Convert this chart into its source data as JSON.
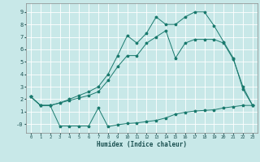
{
  "xlabel": "Humidex (Indice chaleur)",
  "bg_color": "#c8e8e8",
  "grid_color": "#ffffff",
  "line_color": "#1a7a6e",
  "xlim": [
    -0.5,
    23.5
  ],
  "ylim": [
    -0.7,
    9.7
  ],
  "xticks": [
    0,
    1,
    2,
    3,
    4,
    5,
    6,
    7,
    8,
    9,
    10,
    11,
    12,
    13,
    14,
    15,
    16,
    17,
    18,
    19,
    20,
    21,
    22,
    23
  ],
  "yticks": [
    0,
    1,
    2,
    3,
    4,
    5,
    6,
    7,
    8,
    9
  ],
  "ytick_labels": [
    "-0",
    "1",
    "2",
    "3",
    "4",
    "5",
    "6",
    "7",
    "8",
    "9"
  ],
  "line1_x": [
    0,
    1,
    2,
    3,
    4,
    5,
    6,
    7,
    8,
    9,
    10,
    11,
    12,
    13,
    14,
    15,
    16,
    17,
    18,
    19,
    20,
    21,
    22,
    23
  ],
  "line1_y": [
    2.2,
    1.5,
    1.5,
    -0.15,
    -0.15,
    -0.15,
    -0.15,
    1.3,
    -0.2,
    -0.05,
    0.05,
    0.1,
    0.2,
    0.3,
    0.5,
    0.8,
    0.95,
    1.05,
    1.1,
    1.15,
    1.3,
    1.4,
    1.5,
    1.5
  ],
  "line2_x": [
    0,
    1,
    2,
    3,
    4,
    5,
    6,
    7,
    8,
    9,
    10,
    11,
    12,
    13,
    14,
    15,
    16,
    17,
    18,
    19,
    20,
    21,
    22,
    23
  ],
  "line2_y": [
    2.2,
    1.5,
    1.5,
    1.7,
    1.9,
    2.1,
    2.3,
    2.6,
    3.5,
    4.6,
    5.5,
    5.5,
    6.5,
    7.0,
    7.5,
    5.3,
    6.5,
    6.8,
    6.8,
    6.8,
    6.5,
    5.2,
    3.0,
    1.5
  ],
  "line3_x": [
    0,
    1,
    2,
    3,
    4,
    5,
    6,
    7,
    8,
    9,
    10,
    11,
    12,
    13,
    14,
    15,
    16,
    17,
    18,
    19,
    20,
    21,
    22,
    23
  ],
  "line3_y": [
    2.2,
    1.5,
    1.5,
    1.7,
    2.0,
    2.3,
    2.6,
    3.0,
    4.0,
    5.5,
    7.1,
    6.5,
    7.3,
    8.6,
    8.0,
    8.0,
    8.6,
    9.0,
    9.0,
    7.9,
    6.6,
    5.3,
    2.8,
    1.5
  ]
}
